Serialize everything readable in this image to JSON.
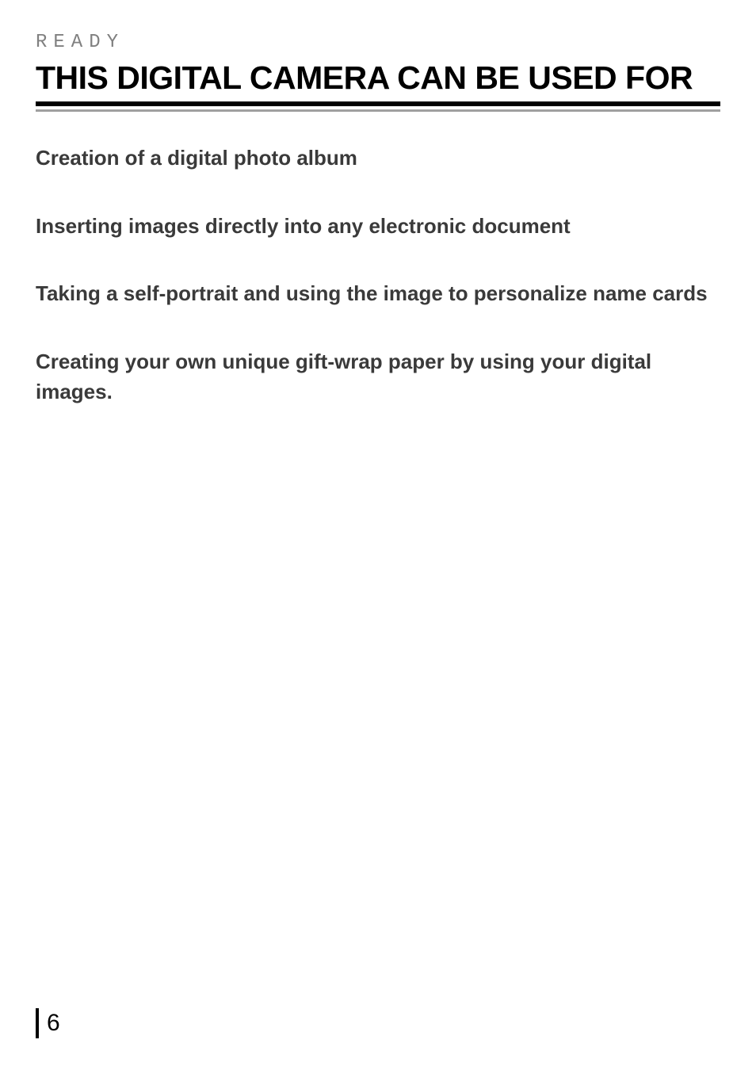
{
  "header": {
    "section_label": "READY",
    "main_title": "THIS DIGITAL CAMERA CAN BE USED FOR"
  },
  "body": {
    "items": [
      "Creation of a digital photo album",
      "Inserting images directly into any electronic document",
      "Taking a self-portrait and using the image to personalize name cards",
      "Creating your own unique gift-wrap paper by using your digital images."
    ]
  },
  "footer": {
    "page_number": "6"
  },
  "styles": {
    "page_bg": "#ffffff",
    "label_color": "#808080",
    "title_color": "#000000",
    "body_color": "#3a3a3a",
    "underline_color": "#000000",
    "subline_color": "#a0a0a0",
    "label_fontsize": 24,
    "title_fontsize": 41,
    "body_fontsize": 26,
    "pagenum_fontsize": 30,
    "label_letterspacing": 8
  }
}
